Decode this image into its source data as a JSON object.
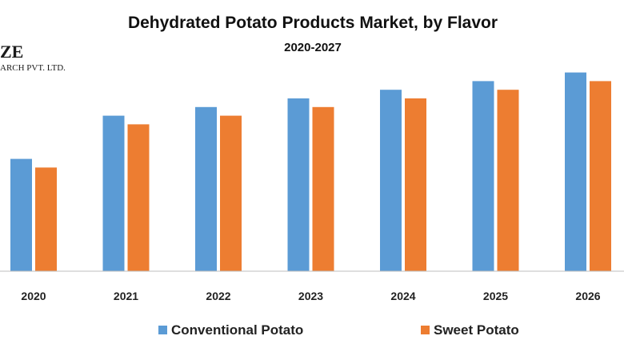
{
  "logo": {
    "line1": "ZE",
    "line2": "ARCH PVT. LTD."
  },
  "chart_data": {
    "type": "bar",
    "title": "Dehydrated Potato Products Market, by Flavor",
    "subtitle": "2020-2027",
    "categories": [
      "2020",
      "2021",
      "2022",
      "2023",
      "2024",
      "2025",
      "2026"
    ],
    "series": [
      {
        "name": "Conventional Potato",
        "color": "#5B9BD5",
        "values": [
          26,
          36,
          38,
          40,
          42,
          44,
          46
        ]
      },
      {
        "name": "Sweet Potato",
        "color": "#ED7D31",
        "values": [
          24,
          34,
          36,
          38,
          40,
          42,
          44
        ]
      }
    ],
    "ylim": [
      0,
      50
    ],
    "grid": false,
    "legend": "bottom"
  }
}
